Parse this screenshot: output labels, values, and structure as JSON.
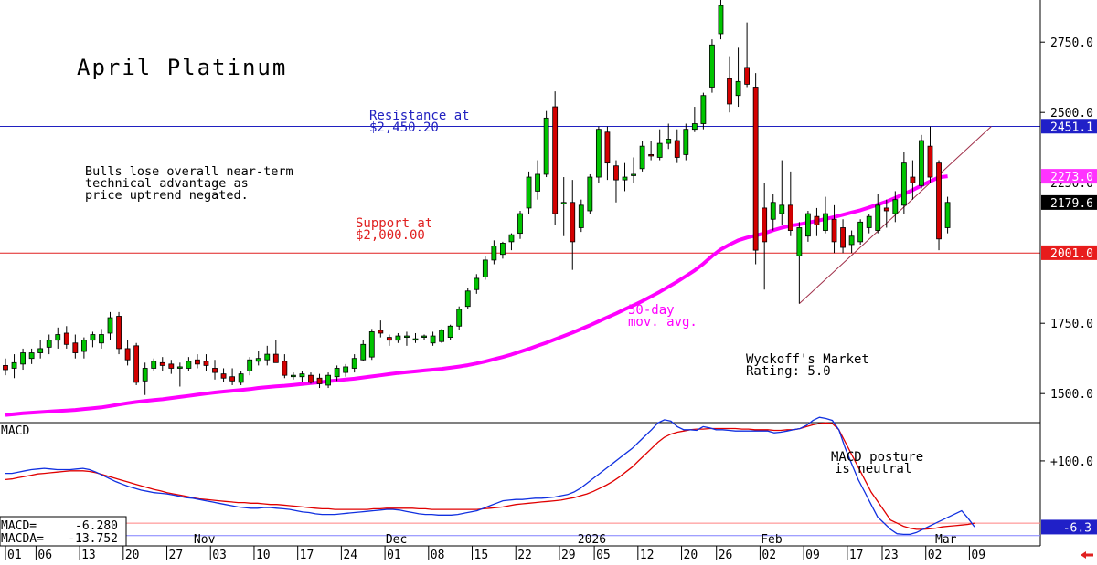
{
  "chart_data": {
    "type": "candlestick",
    "title": "April Platinum",
    "price_axis": {
      "range": [
        1400,
        2900
      ],
      "ticks": [
        "2750.0",
        "2500.0",
        "2250.0",
        "1750.0",
        "1500.0"
      ]
    },
    "candles": [
      {
        "o": 1600,
        "h": 1625,
        "l": 1565,
        "c": 1585
      },
      {
        "o": 1590,
        "h": 1640,
        "l": 1555,
        "c": 1610
      },
      {
        "o": 1605,
        "h": 1660,
        "l": 1585,
        "c": 1645
      },
      {
        "o": 1625,
        "h": 1660,
        "l": 1605,
        "c": 1645
      },
      {
        "o": 1645,
        "h": 1690,
        "l": 1625,
        "c": 1660
      },
      {
        "o": 1665,
        "h": 1710,
        "l": 1640,
        "c": 1690
      },
      {
        "o": 1690,
        "h": 1735,
        "l": 1660,
        "c": 1710
      },
      {
        "o": 1715,
        "h": 1740,
        "l": 1660,
        "c": 1675
      },
      {
        "o": 1680,
        "h": 1710,
        "l": 1625,
        "c": 1645
      },
      {
        "o": 1650,
        "h": 1700,
        "l": 1625,
        "c": 1690
      },
      {
        "o": 1690,
        "h": 1720,
        "l": 1665,
        "c": 1710
      },
      {
        "o": 1680,
        "h": 1730,
        "l": 1660,
        "c": 1710
      },
      {
        "o": 1715,
        "h": 1790,
        "l": 1690,
        "c": 1770
      },
      {
        "o": 1775,
        "h": 1790,
        "l": 1640,
        "c": 1660
      },
      {
        "o": 1660,
        "h": 1690,
        "l": 1600,
        "c": 1620
      },
      {
        "o": 1670,
        "h": 1680,
        "l": 1530,
        "c": 1540
      },
      {
        "o": 1545,
        "h": 1610,
        "l": 1495,
        "c": 1590
      },
      {
        "o": 1590,
        "h": 1625,
        "l": 1580,
        "c": 1615
      },
      {
        "o": 1610,
        "h": 1630,
        "l": 1580,
        "c": 1600
      },
      {
        "o": 1605,
        "h": 1620,
        "l": 1570,
        "c": 1590
      },
      {
        "o": 1590,
        "h": 1610,
        "l": 1525,
        "c": 1595
      },
      {
        "o": 1590,
        "h": 1630,
        "l": 1580,
        "c": 1615
      },
      {
        "o": 1620,
        "h": 1640,
        "l": 1590,
        "c": 1605
      },
      {
        "o": 1615,
        "h": 1640,
        "l": 1580,
        "c": 1600
      },
      {
        "o": 1590,
        "h": 1620,
        "l": 1550,
        "c": 1575
      },
      {
        "o": 1570,
        "h": 1590,
        "l": 1540,
        "c": 1555
      },
      {
        "o": 1560,
        "h": 1590,
        "l": 1530,
        "c": 1545
      },
      {
        "o": 1540,
        "h": 1580,
        "l": 1530,
        "c": 1570
      },
      {
        "o": 1580,
        "h": 1630,
        "l": 1565,
        "c": 1620
      },
      {
        "o": 1615,
        "h": 1650,
        "l": 1600,
        "c": 1625
      },
      {
        "o": 1620,
        "h": 1670,
        "l": 1600,
        "c": 1640
      },
      {
        "o": 1640,
        "h": 1690,
        "l": 1620,
        "c": 1610
      },
      {
        "o": 1615,
        "h": 1640,
        "l": 1555,
        "c": 1565
      },
      {
        "o": 1565,
        "h": 1575,
        "l": 1550,
        "c": 1565
      },
      {
        "o": 1560,
        "h": 1580,
        "l": 1540,
        "c": 1570
      },
      {
        "o": 1565,
        "h": 1575,
        "l": 1535,
        "c": 1540
      },
      {
        "o": 1555,
        "h": 1570,
        "l": 1520,
        "c": 1535
      },
      {
        "o": 1530,
        "h": 1575,
        "l": 1520,
        "c": 1565
      },
      {
        "o": 1560,
        "h": 1600,
        "l": 1545,
        "c": 1590
      },
      {
        "o": 1575,
        "h": 1605,
        "l": 1560,
        "c": 1595
      },
      {
        "o": 1590,
        "h": 1640,
        "l": 1575,
        "c": 1625
      },
      {
        "o": 1620,
        "h": 1690,
        "l": 1615,
        "c": 1675
      },
      {
        "o": 1630,
        "h": 1730,
        "l": 1620,
        "c": 1720
      },
      {
        "o": 1725,
        "h": 1760,
        "l": 1700,
        "c": 1715
      },
      {
        "o": 1700,
        "h": 1710,
        "l": 1670,
        "c": 1690
      },
      {
        "o": 1690,
        "h": 1715,
        "l": 1680,
        "c": 1705
      },
      {
        "o": 1700,
        "h": 1720,
        "l": 1670,
        "c": 1705
      },
      {
        "o": 1695,
        "h": 1715,
        "l": 1680,
        "c": 1695
      },
      {
        "o": 1700,
        "h": 1710,
        "l": 1690,
        "c": 1705
      },
      {
        "o": 1680,
        "h": 1720,
        "l": 1670,
        "c": 1705
      },
      {
        "o": 1685,
        "h": 1730,
        "l": 1680,
        "c": 1725
      },
      {
        "o": 1700,
        "h": 1745,
        "l": 1690,
        "c": 1740
      },
      {
        "o": 1740,
        "h": 1810,
        "l": 1725,
        "c": 1800
      },
      {
        "o": 1810,
        "h": 1875,
        "l": 1800,
        "c": 1865
      },
      {
        "o": 1870,
        "h": 1925,
        "l": 1855,
        "c": 1910
      },
      {
        "o": 1915,
        "h": 1990,
        "l": 1905,
        "c": 1975
      },
      {
        "o": 1975,
        "h": 2045,
        "l": 1960,
        "c": 2025
      },
      {
        "o": 1995,
        "h": 2040,
        "l": 1980,
        "c": 2035
      },
      {
        "o": 2040,
        "h": 2070,
        "l": 2010,
        "c": 2065
      },
      {
        "o": 2070,
        "h": 2150,
        "l": 2050,
        "c": 2140
      },
      {
        "o": 2160,
        "h": 2290,
        "l": 2140,
        "c": 2270
      },
      {
        "o": 2220,
        "h": 2330,
        "l": 2190,
        "c": 2280
      },
      {
        "o": 2280,
        "h": 2505,
        "l": 2270,
        "c": 2480
      },
      {
        "o": 2520,
        "h": 2575,
        "l": 2100,
        "c": 2140
      },
      {
        "o": 2175,
        "h": 2270,
        "l": 2060,
        "c": 2180
      },
      {
        "o": 2180,
        "h": 2260,
        "l": 1940,
        "c": 2040
      },
      {
        "o": 2090,
        "h": 2190,
        "l": 2075,
        "c": 2170
      },
      {
        "o": 2150,
        "h": 2280,
        "l": 2140,
        "c": 2270
      },
      {
        "o": 2270,
        "h": 2450,
        "l": 2250,
        "c": 2440
      },
      {
        "o": 2430,
        "h": 2450,
        "l": 2260,
        "c": 2320
      },
      {
        "o": 2310,
        "h": 2330,
        "l": 2180,
        "c": 2260
      },
      {
        "o": 2260,
        "h": 2320,
        "l": 2220,
        "c": 2270
      },
      {
        "o": 2280,
        "h": 2340,
        "l": 2250,
        "c": 2280
      },
      {
        "o": 2300,
        "h": 2400,
        "l": 2290,
        "c": 2380
      },
      {
        "o": 2350,
        "h": 2400,
        "l": 2330,
        "c": 2345
      },
      {
        "o": 2340,
        "h": 2440,
        "l": 2330,
        "c": 2390
      },
      {
        "o": 2390,
        "h": 2460,
        "l": 2370,
        "c": 2405
      },
      {
        "o": 2400,
        "h": 2440,
        "l": 2320,
        "c": 2340
      },
      {
        "o": 2350,
        "h": 2460,
        "l": 2330,
        "c": 2440
      },
      {
        "o": 2440,
        "h": 2520,
        "l": 2430,
        "c": 2460
      },
      {
        "o": 2460,
        "h": 2570,
        "l": 2440,
        "c": 2560
      },
      {
        "o": 2590,
        "h": 2760,
        "l": 2570,
        "c": 2740
      },
      {
        "o": 2780,
        "h": 2910,
        "l": 2760,
        "c": 2880
      },
      {
        "o": 2620,
        "h": 2700,
        "l": 2500,
        "c": 2530
      },
      {
        "o": 2560,
        "h": 2730,
        "l": 2520,
        "c": 2610
      },
      {
        "o": 2660,
        "h": 2820,
        "l": 2590,
        "c": 2600
      },
      {
        "o": 2590,
        "h": 2640,
        "l": 1960,
        "c": 2010
      },
      {
        "o": 2160,
        "h": 2250,
        "l": 1870,
        "c": 2040
      },
      {
        "o": 2120,
        "h": 2210,
        "l": 2080,
        "c": 2180
      },
      {
        "o": 2140,
        "h": 2330,
        "l": 2100,
        "c": 2170
      },
      {
        "o": 2170,
        "h": 2290,
        "l": 2060,
        "c": 2080
      },
      {
        "o": 1990,
        "h": 2110,
        "l": 1820,
        "c": 2090
      },
      {
        "o": 2060,
        "h": 2150,
        "l": 2040,
        "c": 2140
      },
      {
        "o": 2130,
        "h": 2160,
        "l": 2060,
        "c": 2100
      },
      {
        "o": 2080,
        "h": 2200,
        "l": 2070,
        "c": 2140
      },
      {
        "o": 2120,
        "h": 2170,
        "l": 2000,
        "c": 2040
      },
      {
        "o": 2090,
        "h": 2120,
        "l": 2000,
        "c": 2020
      },
      {
        "o": 2030,
        "h": 2080,
        "l": 2000,
        "c": 2060
      },
      {
        "o": 2040,
        "h": 2120,
        "l": 2030,
        "c": 2110
      },
      {
        "o": 2090,
        "h": 2140,
        "l": 2070,
        "c": 2130
      },
      {
        "o": 2080,
        "h": 2210,
        "l": 2070,
        "c": 2170
      },
      {
        "o": 2160,
        "h": 2190,
        "l": 2090,
        "c": 2150
      },
      {
        "o": 2140,
        "h": 2220,
        "l": 2110,
        "c": 2190
      },
      {
        "o": 2170,
        "h": 2360,
        "l": 2140,
        "c": 2320
      },
      {
        "o": 2270,
        "h": 2330,
        "l": 2190,
        "c": 2250
      },
      {
        "o": 2240,
        "h": 2420,
        "l": 2230,
        "c": 2400
      },
      {
        "o": 2380,
        "h": 2450,
        "l": 2250,
        "c": 2270
      },
      {
        "o": 2320,
        "h": 2330,
        "l": 2010,
        "c": 2050
      },
      {
        "o": 2090,
        "h": 2200,
        "l": 2070,
        "c": 2180
      }
    ],
    "moving_average": {
      "label_lines": [
        "50-day",
        "mov. avg."
      ],
      "values": [
        1424,
        1427,
        1430,
        1432,
        1434,
        1436,
        1438,
        1440,
        1442,
        1445,
        1448,
        1451,
        1456,
        1461,
        1466,
        1470,
        1474,
        1477,
        1480,
        1484,
        1488,
        1492,
        1496,
        1500,
        1504,
        1507,
        1510,
        1513,
        1516,
        1520,
        1523,
        1526,
        1528,
        1531,
        1534,
        1537,
        1540,
        1544,
        1547,
        1550,
        1553,
        1557,
        1561,
        1565,
        1569,
        1573,
        1576,
        1579,
        1582,
        1585,
        1588,
        1592,
        1596,
        1601,
        1607,
        1614,
        1622,
        1630,
        1639,
        1649,
        1659,
        1670,
        1681,
        1693,
        1705,
        1717,
        1730,
        1743,
        1757,
        1771,
        1785,
        1800,
        1814,
        1829,
        1845,
        1862,
        1880,
        1898,
        1918,
        1938,
        1962,
        1989,
        2013,
        2030,
        2045,
        2055,
        2062,
        2070,
        2081,
        2090,
        2097,
        2102,
        2108,
        2114,
        2121,
        2128,
        2136,
        2144,
        2152,
        2162,
        2172,
        2183,
        2196,
        2210,
        2224,
        2240,
        2255,
        2269,
        2273
      ]
    },
    "levels": [
      {
        "value": 2450.2,
        "color": "#2020c0",
        "label_lines": [
          "Resistance at",
          "$2,450.20"
        ]
      },
      {
        "value": 2000.0,
        "color": "#e02020",
        "label_lines": [
          "Support at",
          "$2,000.00"
        ]
      }
    ],
    "price_tags": [
      {
        "text": "2451.1",
        "value": 2451.1,
        "bg": "#2020c8",
        "fg": "#ffffff"
      },
      {
        "text": "2273.0",
        "value": 2273.0,
        "bg": "#ff33ff",
        "fg": "#ffffff"
      },
      {
        "text": "2179.6",
        "value": 2179.6,
        "bg": "#000000",
        "fg": "#ffffff"
      },
      {
        "text": "2001.0",
        "value": 2001.0,
        "bg": "#e81c1c",
        "fg": "#ffffff"
      }
    ],
    "trendlines": [
      {
        "from": {
          "i": 91,
          "v": 1820
        },
        "to": {
          "i": 113,
          "v": 2450
        },
        "color": "#a0304a"
      }
    ],
    "annotations": {
      "comment_lines": [
        "Bulls lose overall near-term",
        "technical advantage as",
        "price uptrend negated."
      ],
      "rating_lines": [
        "Wyckoff's Market",
        "Rating: 5.0"
      ]
    },
    "macd": {
      "panel_label": "MACD",
      "range": [
        -35,
        160
      ],
      "tick": {
        "text": "+100.0",
        "value": 100
      },
      "reference_lines": [
        {
          "value": 0,
          "color": "#ff8080"
        },
        {
          "value": -20,
          "color": "#8080ff"
        }
      ],
      "macd_line": [
        80,
        80,
        82,
        84,
        86,
        87,
        88,
        87,
        86,
        86,
        86,
        87,
        88,
        86,
        82,
        77,
        72,
        67,
        63,
        59,
        56,
        53,
        51,
        49,
        48,
        47,
        45,
        43,
        41,
        40,
        38,
        36,
        34,
        32,
        30,
        28,
        26,
        25,
        24,
        24,
        25,
        25,
        24,
        23,
        22,
        20,
        18,
        17,
        15,
        14,
        14,
        14,
        15,
        16,
        17,
        18,
        19,
        20,
        21,
        22,
        22,
        21,
        19,
        17,
        15,
        14,
        14,
        13,
        13,
        13,
        14,
        16,
        18,
        20,
        24,
        28,
        32,
        36,
        37,
        38,
        38,
        39,
        40,
        40,
        41,
        42,
        44,
        46,
        50,
        56,
        64,
        72,
        80,
        88,
        96,
        104,
        112,
        120,
        130,
        140,
        150,
        161,
        166,
        164,
        155,
        150,
        150,
        149,
        155,
        153,
        150,
        150,
        149,
        148,
        148,
        148,
        148,
        148,
        148,
        145,
        146,
        148,
        150,
        152,
        157,
        165,
        170,
        168,
        165,
        150,
        120,
        95,
        70,
        50,
        30,
        10,
        0,
        -10,
        -17,
        -18,
        -18,
        -15,
        -10,
        -5,
        0,
        5,
        10,
        15,
        20,
        8,
        -6
      ],
      "signal_line": [
        70,
        71,
        73,
        75,
        77,
        79,
        80,
        81,
        82,
        83,
        84,
        84,
        84,
        83,
        81,
        78,
        75,
        72,
        69,
        66,
        63,
        60,
        57,
        54,
        52,
        49,
        47,
        45,
        43,
        41,
        39,
        38,
        37,
        36,
        35,
        34,
        33,
        33,
        32,
        32,
        31,
        30,
        30,
        29,
        28,
        27,
        26,
        25,
        24,
        23,
        23,
        22,
        22,
        22,
        22,
        22,
        22,
        23,
        23,
        24,
        24,
        24,
        24,
        24,
        23,
        23,
        22,
        22,
        22,
        22,
        22,
        22,
        22,
        22,
        23,
        24,
        25,
        26,
        28,
        30,
        31,
        32,
        33,
        34,
        35,
        36,
        37,
        39,
        41,
        44,
        47,
        51,
        56,
        61,
        67,
        74,
        82,
        90,
        100,
        110,
        120,
        130,
        138,
        143,
        146,
        148,
        150,
        151,
        151,
        152,
        152,
        152,
        152,
        152,
        151,
        151,
        150,
        150,
        150,
        149,
        149,
        150,
        150,
        152,
        155,
        158,
        160,
        161,
        160,
        150,
        130,
        110,
        90,
        70,
        50,
        35,
        20,
        5,
        0,
        -5,
        -8,
        -10,
        -10,
        -9,
        -8,
        -6,
        -5,
        -4,
        -3,
        -2,
        0
      ],
      "readout": [
        {
          "label": "MACD=",
          "value": "-6.280"
        },
        {
          "label": "MACDA=",
          "value": "-13.752"
        }
      ],
      "tag": {
        "text": "-6.3",
        "value": -6.3,
        "bg": "#2020c8",
        "fg": "#ffffff"
      },
      "comment_lines": [
        "MACD posture",
        "is neutral"
      ]
    },
    "x_axis": {
      "range": [
        0,
        118
      ],
      "month_labels": [
        {
          "text": "Nov",
          "i": 22
        },
        {
          "text": "Dec",
          "i": 44
        },
        {
          "text": "2026",
          "i": 66
        },
        {
          "text": "Feb",
          "i": 87
        },
        {
          "text": "Mar",
          "i": 107
        }
      ],
      "day_labels": [
        {
          "text": "01",
          "i": 0
        },
        {
          "text": "06",
          "i": 3.5
        },
        {
          "text": "13",
          "i": 8.5
        },
        {
          "text": "20",
          "i": 13.5
        },
        {
          "text": "27",
          "i": 18.5
        },
        {
          "text": "03",
          "i": 23.5
        },
        {
          "text": "10",
          "i": 28.5
        },
        {
          "text": "17",
          "i": 33.5
        },
        {
          "text": "24",
          "i": 38.5
        },
        {
          "text": "01",
          "i": 43.5
        },
        {
          "text": "08",
          "i": 48.5
        },
        {
          "text": "15",
          "i": 53.5
        },
        {
          "text": "22",
          "i": 58.5
        },
        {
          "text": "29",
          "i": 63.5
        },
        {
          "text": "05",
          "i": 67.5
        },
        {
          "text": "12",
          "i": 72.5
        },
        {
          "text": "20",
          "i": 77.5
        },
        {
          "text": "26",
          "i": 81.5
        },
        {
          "text": "02",
          "i": 86.5
        },
        {
          "text": "09",
          "i": 91.5
        },
        {
          "text": "17",
          "i": 96.5
        },
        {
          "text": "23",
          "i": 100.5
        },
        {
          "text": "02",
          "i": 105.5
        },
        {
          "text": "09",
          "i": 110.5
        }
      ]
    },
    "colors": {
      "up": "#00c400",
      "down": "#d40000",
      "ma": "#ff00ff",
      "macd": "#1030e0",
      "signal": "#e00000"
    },
    "icons": {
      "scroll": "left-arrow-icon"
    }
  }
}
